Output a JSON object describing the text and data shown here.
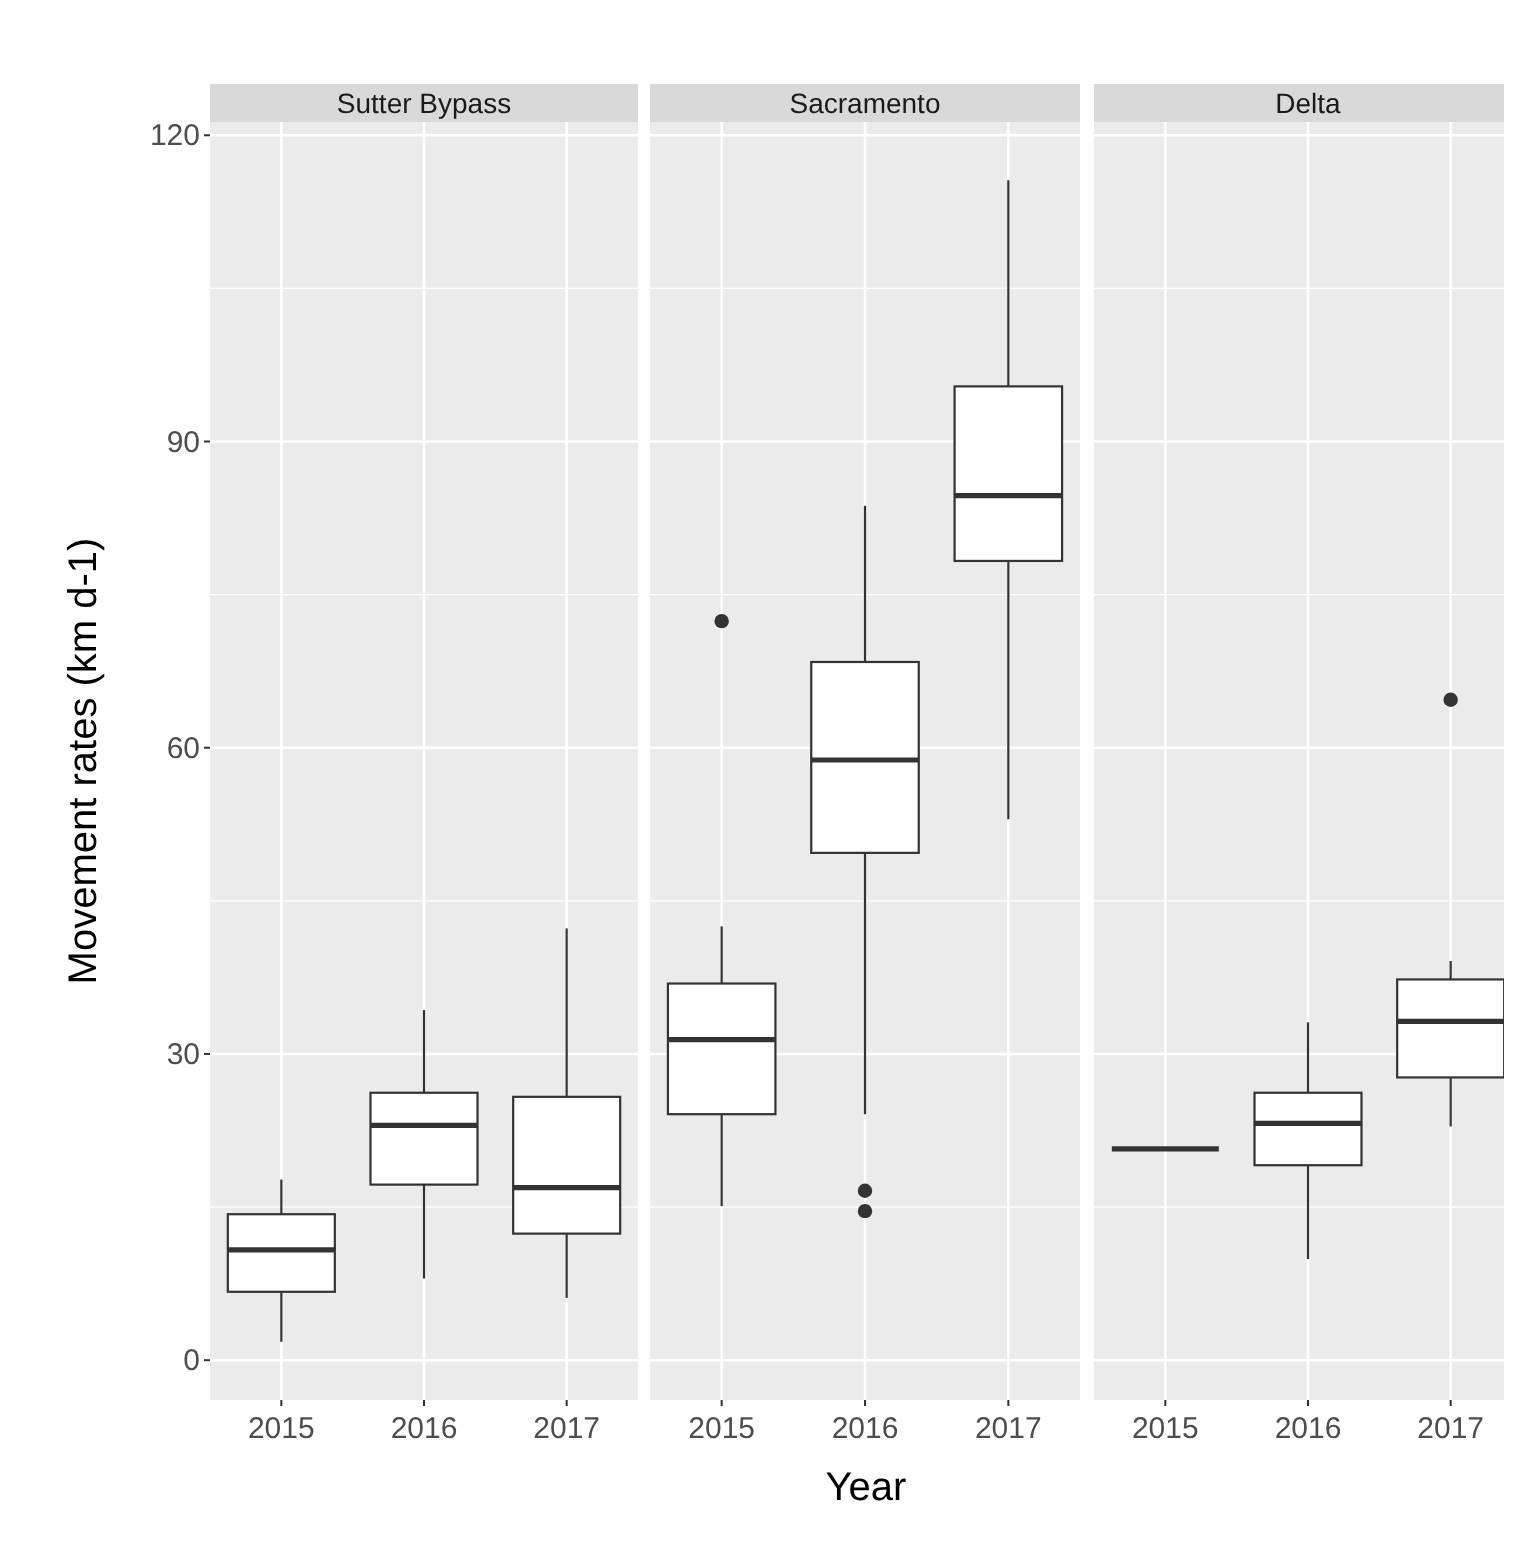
{
  "chart_data": [
    {
      "type": "box",
      "title": "Sutter Bypass",
      "ylabel": "Movement rates (km d-1)",
      "categories": [
        "2015",
        "2016",
        "2017"
      ],
      "ylim": [
        -3.9,
        121.3
      ],
      "yticks": [
        0,
        30,
        60,
        90,
        120
      ],
      "grid": true,
      "boxes": [
        {
          "low": 1.8,
          "q1": 6.7,
          "median": 10.8,
          "q3": 14.3,
          "high": 17.7
        },
        {
          "low": 8.0,
          "q1": 17.2,
          "median": 23.0,
          "q3": 26.2,
          "high": 34.3
        },
        {
          "low": 6.1,
          "q1": 12.4,
          "median": 16.9,
          "q3": 25.8,
          "high": 42.3
        }
      ]
    },
    {
      "type": "box",
      "title": "Sacramento",
      "xlabel": "Year",
      "categories": [
        "2015",
        "2016",
        "2017"
      ],
      "ylim": [
        -3.9,
        121.3
      ],
      "yticks": [
        0,
        30,
        60,
        90,
        120
      ],
      "tick_labels": "x",
      "grid": true,
      "boxes": [
        {
          "low": 15.1,
          "q1": 24.1,
          "median": 31.4,
          "q3": 36.9,
          "high": 42.5,
          "outliers": [
            72.4
          ]
        },
        {
          "low": 24.1,
          "q1": 49.7,
          "median": 58.8,
          "q3": 68.4,
          "high": 83.7,
          "outliers": [
            16.6,
            14.6
          ]
        },
        {
          "low": 53.0,
          "q1": 78.3,
          "median": 84.7,
          "q3": 95.4,
          "high": 115.6
        }
      ]
    },
    {
      "type": "box",
      "title": "Delta",
      "categories": [
        "2015",
        "2016",
        "2017"
      ],
      "ylim": [
        -3.9,
        121.3
      ],
      "yticks": [
        0,
        30,
        60,
        90,
        120
      ],
      "tick_labels": "x",
      "grid": true,
      "boxes": [
        {
          "low": 20.7,
          "q1": 20.7,
          "median": 20.7,
          "q3": 20.7,
          "high": 20.7
        },
        {
          "low": 9.9,
          "q1": 19.1,
          "median": 23.2,
          "q3": 26.2,
          "high": 33.1
        },
        {
          "low": 22.9,
          "q1": 27.7,
          "median": 33.2,
          "q3": 37.3,
          "high": 39.1,
          "outliers": [
            64.7
          ]
        }
      ]
    }
  ]
}
